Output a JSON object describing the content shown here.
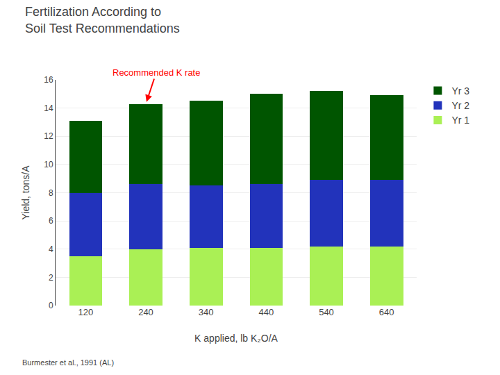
{
  "chart_data": {
    "type": "bar",
    "stacked": true,
    "title": "Fertilization According to\nSoil Test Recommendations",
    "xlabel": "K applied, lb K₂O/A",
    "ylabel": "Yield, tons/A",
    "categories": [
      "120",
      "240",
      "340",
      "440",
      "540",
      "640"
    ],
    "series": [
      {
        "name": "Yr 1",
        "color": "#aaf055",
        "values": [
          3.5,
          4.0,
          4.1,
          4.1,
          4.2,
          4.2
        ]
      },
      {
        "name": "Yr 2",
        "color": "#2233bb",
        "values": [
          4.5,
          4.6,
          4.4,
          4.5,
          4.7,
          4.7
        ]
      },
      {
        "name": "Yr 3",
        "color": "#005500",
        "values": [
          5.1,
          5.7,
          6.0,
          6.4,
          6.3,
          6.0
        ]
      }
    ],
    "ylim": [
      0,
      16
    ],
    "yticks": [
      0,
      2,
      4,
      6,
      8,
      10,
      12,
      14,
      16
    ],
    "grid": true,
    "legend": "right",
    "annotations": [
      {
        "text": "Recommended K rate",
        "category": "240",
        "color": "red"
      }
    ],
    "footnote": "Burmester et al., 1991 (AL)"
  }
}
